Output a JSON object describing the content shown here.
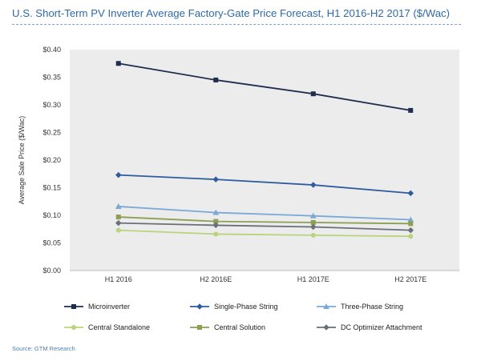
{
  "title": "U.S. Short-Term PV Inverter Average Factory-Gate Price Forecast, H1 2016-H2 2017 ($/Wac)",
  "source": "Source: GTM Research",
  "chart_data": {
    "type": "line",
    "title": "U.S. Short-Term PV Inverter Average Factory-Gate Price Forecast, H1 2016-H2 2017 ($/Wac)",
    "ylabel": "Average Sale Price ($/Wac)",
    "xlabel": "",
    "categories": [
      "H1 2016",
      "H2 2016E",
      "H1 2017E",
      "H2 2017E"
    ],
    "ylim": [
      0,
      0.4
    ],
    "yticks": [
      0.0,
      0.05,
      0.1,
      0.15,
      0.2,
      0.25,
      0.3,
      0.35,
      0.4
    ],
    "ytick_labels": [
      "$0.00",
      "$0.05",
      "$0.10",
      "$0.15",
      "$0.20",
      "$0.25",
      "$0.30",
      "$0.35",
      "$0.40"
    ],
    "grid": false,
    "legend_position": "bottom",
    "series": [
      {
        "name": "Microinverter",
        "values": [
          0.375,
          0.345,
          0.32,
          0.29
        ],
        "color": "#1f2d4e",
        "marker": "square"
      },
      {
        "name": "Single-Phase String",
        "values": [
          0.173,
          0.165,
          0.155,
          0.14
        ],
        "color": "#2e5c9e",
        "marker": "diamond"
      },
      {
        "name": "Three-Phase String",
        "values": [
          0.116,
          0.105,
          0.099,
          0.092
        ],
        "color": "#7aa9d8",
        "marker": "triangle"
      },
      {
        "name": "Central Standalone",
        "values": [
          0.073,
          0.066,
          0.064,
          0.062
        ],
        "color": "#b9d47a",
        "marker": "circle"
      },
      {
        "name": "Central Solution",
        "values": [
          0.097,
          0.089,
          0.087,
          0.085
        ],
        "color": "#8c9f52",
        "marker": "square"
      },
      {
        "name": "DC Optimizer Attachment",
        "values": [
          0.086,
          0.082,
          0.079,
          0.073
        ],
        "color": "#6a6f78",
        "marker": "diamond"
      }
    ]
  }
}
